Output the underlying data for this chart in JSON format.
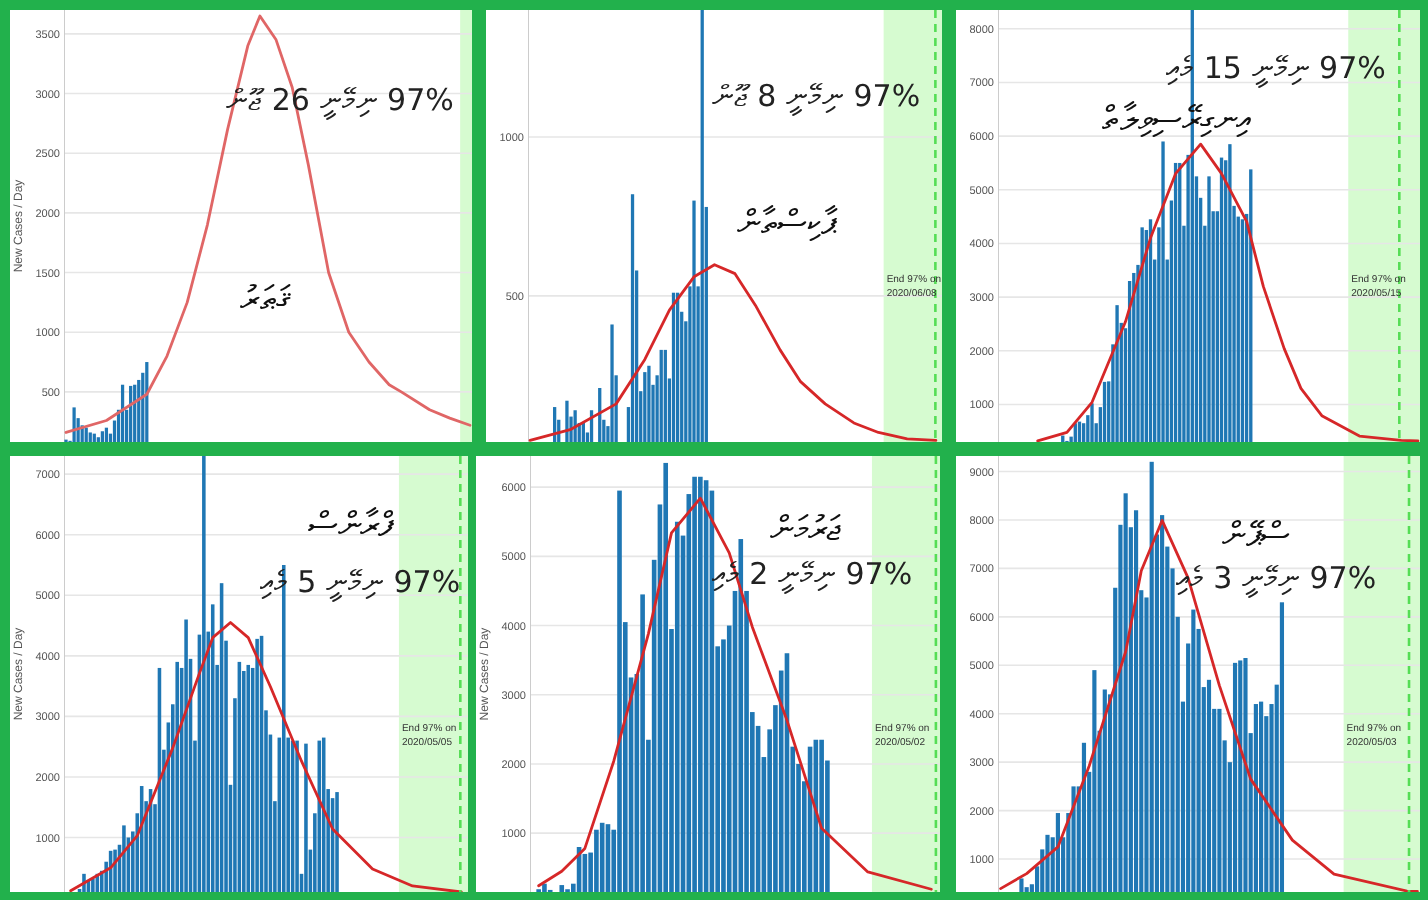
{
  "chart_data": [
    {
      "type": "bar",
      "title": "ޤަޠަރު",
      "subtitle": "97% ނިމޭނީ 26 ޖޫން",
      "ylabel": "New Cases / Day",
      "tick_labels": "y",
      "grid": "y",
      "ylim": [
        80,
        3700
      ],
      "yticks": [
        500,
        1000,
        1500,
        2000,
        2500,
        3000,
        3500
      ],
      "categories": [
        null,
        null,
        null,
        null,
        null,
        null,
        null,
        null,
        null,
        null,
        null,
        null,
        null,
        null,
        null,
        null,
        null,
        null,
        null,
        null,
        null,
        null,
        null,
        null,
        null,
        null,
        null,
        null,
        null,
        null,
        null,
        null,
        null,
        null,
        null,
        null,
        null,
        null,
        null,
        null,
        null,
        null,
        null,
        null,
        null,
        null,
        null,
        null,
        null,
        null,
        null,
        null,
        null,
        null,
        null,
        null,
        null,
        null,
        null,
        null,
        null,
        null,
        null,
        null,
        null,
        null,
        null,
        null,
        null,
        null,
        null,
        null,
        null,
        null,
        null,
        null,
        null,
        null,
        null,
        null,
        null,
        null,
        null,
        null,
        null,
        null,
        null,
        null,
        null,
        null,
        null,
        null,
        null,
        null,
        null,
        null,
        null,
        null,
        null,
        null,
        null
      ],
      "series": [
        {
          "color": "#1f77b4",
          "values": [
            100,
            90,
            370,
            280,
            220,
            200,
            160,
            150,
            120,
            170,
            200,
            150,
            260,
            350,
            560,
            350,
            550,
            560,
            600,
            660,
            750,
            null,
            null,
            null,
            null,
            null,
            null,
            null,
            null,
            null,
            null,
            null,
            null,
            null,
            null,
            null,
            null,
            null,
            null,
            null,
            null,
            null,
            null,
            null,
            null,
            null,
            null,
            null,
            null,
            null,
            null,
            null,
            null,
            null,
            null,
            null,
            null,
            null,
            null,
            null,
            null,
            null,
            null,
            null,
            null,
            null,
            null,
            null,
            null,
            null,
            null,
            null,
            null,
            null,
            null,
            null,
            null,
            null,
            null,
            null,
            null,
            null,
            null,
            null,
            null,
            null,
            null,
            null,
            null,
            null,
            null,
            null,
            null,
            null,
            null,
            null,
            null,
            null,
            null,
            null,
            null
          ]
        },
        {
          "type": "line",
          "color": "#e06666",
          "values": [
            160,
            null,
            null,
            null,
            null,
            null,
            null,
            null,
            null,
            null,
            260,
            null,
            null,
            null,
            null,
            null,
            null,
            null,
            null,
            null,
            480,
            null,
            null,
            null,
            null,
            800,
            null,
            null,
            null,
            null,
            1250,
            null,
            null,
            null,
            null,
            1900,
            null,
            null,
            null,
            null,
            2700,
            null,
            null,
            null,
            null,
            3400,
            null,
            null,
            3650,
            null,
            null,
            null,
            3450,
            null,
            null,
            null,
            3050,
            null,
            null,
            null,
            2400,
            null,
            null,
            null,
            null,
            1500,
            null,
            null,
            null,
            null,
            1000,
            null,
            null,
            null,
            null,
            750,
            null,
            null,
            null,
            null,
            560,
            null,
            null,
            500,
            null,
            null,
            null,
            null,
            null,
            null,
            350,
            null,
            null,
            null,
            null,
            280,
            null,
            null,
            null,
            null,
            220
          ]
        }
      ]
    },
    {
      "type": "bar",
      "title": "ޕާކިސްތާން",
      "subtitle": "97% ނިމޭނީ 8 ޖޫން",
      "tick_labels": "y",
      "grid": "y",
      "ylim": [
        40,
        1400
      ],
      "yticks": [
        500,
        1000
      ],
      "categories": [
        null,
        null,
        null,
        null,
        null,
        null,
        null,
        null,
        null,
        null,
        null,
        null,
        null,
        null,
        null,
        null,
        null,
        null,
        null,
        null,
        null,
        null,
        null,
        null,
        null,
        null,
        null,
        null,
        null,
        null,
        null,
        null,
        null,
        null,
        null,
        null,
        null,
        null,
        null,
        null,
        null,
        null,
        null,
        null,
        null,
        null,
        null,
        null,
        null,
        null,
        null,
        null,
        null,
        null,
        null,
        null,
        null,
        null,
        null,
        null,
        null,
        null,
        null,
        null,
        null,
        null,
        null,
        null,
        null,
        null,
        null,
        null,
        null,
        null,
        null,
        null,
        null,
        null,
        null,
        null,
        null,
        null,
        null,
        null,
        null,
        null,
        null,
        null,
        null,
        null,
        null,
        null,
        null,
        null,
        null,
        null,
        null,
        null,
        null,
        null,
        null
      ],
      "series": [
        {
          "color": "#1f77b4",
          "values": [
            null,
            null,
            null,
            null,
            null,
            null,
            150,
            110,
            null,
            170,
            120,
            140,
            100,
            100,
            70,
            140,
            null,
            210,
            110,
            90,
            410,
            250,
            null,
            null,
            150,
            820,
            580,
            200,
            260,
            280,
            220,
            250,
            330,
            330,
            240,
            510,
            510,
            450,
            420,
            530,
            800,
            530,
            1400,
            780,
            null,
            null,
            null,
            null,
            null,
            null,
            null,
            null,
            null,
            null,
            null,
            null,
            null,
            null,
            null,
            null,
            null,
            null,
            null,
            null,
            null,
            null,
            null,
            null,
            null,
            null,
            null,
            null,
            null,
            null,
            null,
            null,
            null,
            null,
            null,
            null,
            null,
            null,
            null,
            null,
            null,
            null,
            null,
            null,
            null,
            null,
            null,
            null,
            null,
            null,
            null,
            null,
            null,
            null,
            null,
            null,
            null
          ]
        },
        {
          "type": "line",
          "color": "#d62728",
          "values": [
            45,
            null,
            null,
            null,
            null,
            null,
            null,
            null,
            null,
            null,
            80,
            null,
            null,
            null,
            null,
            null,
            null,
            null,
            null,
            null,
            null,
            160,
            null,
            null,
            null,
            null,
            null,
            null,
            300,
            null,
            null,
            null,
            null,
            null,
            455,
            null,
            null,
            null,
            null,
            null,
            560,
            null,
            null,
            null,
            null,
            598,
            null,
            null,
            null,
            null,
            570,
            null,
            null,
            null,
            null,
            470,
            null,
            null,
            null,
            null,
            null,
            330,
            null,
            null,
            null,
            null,
            230,
            null,
            null,
            null,
            null,
            null,
            160,
            null,
            null,
            null,
            null,
            null,
            null,
            100,
            null,
            null,
            null,
            null,
            null,
            70,
            null,
            null,
            null,
            null,
            null,
            null,
            50,
            null,
            null,
            null,
            null,
            null,
            null,
            45,
            null
          ]
        }
      ],
      "annotations": [
        "End 97% on 2020/06/08"
      ]
    },
    {
      "type": "bar",
      "title": "އިނގިރޭސިވިލާތް",
      "subtitle": "97% ނިމޭނީ 15 މެއި",
      "tick_labels": "y",
      "grid": "y",
      "ylim": [
        300,
        8350
      ],
      "yticks": [
        1000,
        2000,
        3000,
        4000,
        5000,
        6000,
        7000,
        8000
      ],
      "categories": [
        null,
        null,
        null,
        null,
        null,
        null,
        null,
        null,
        null,
        null,
        null,
        null,
        null,
        null,
        null,
        null,
        null,
        null,
        null,
        null,
        null,
        null,
        null,
        null,
        null,
        null,
        null,
        null,
        null,
        null,
        null,
        null,
        null,
        null,
        null,
        null,
        null,
        null,
        null,
        null,
        null,
        null,
        null,
        null,
        null,
        null,
        null,
        null,
        null,
        null,
        null,
        null,
        null,
        null,
        null,
        null,
        null,
        null,
        null,
        null,
        null,
        null,
        null,
        null,
        null,
        null,
        null,
        null,
        null,
        null,
        null,
        null,
        null,
        null,
        null,
        null,
        null,
        null,
        null,
        null,
        null,
        null,
        null,
        null,
        null,
        null,
        null,
        null,
        null,
        null,
        null,
        null,
        null,
        null,
        null,
        null,
        null,
        null,
        null,
        null,
        null
      ],
      "series": [
        {
          "color": "#1f77b4",
          "values": [
            null,
            null,
            null,
            null,
            null,
            null,
            null,
            null,
            null,
            null,
            null,
            null,
            null,
            null,
            null,
            420,
            320,
            400,
            650,
            680,
            650,
            800,
            1020,
            650,
            950,
            1420,
            1430,
            2120,
            2850,
            2520,
            2420,
            3300,
            3450,
            3600,
            4300,
            4250,
            4450,
            3700,
            4300,
            5900,
            3700,
            4800,
            5500,
            5500,
            4330,
            5650,
            8350,
            5250,
            4850,
            4330,
            5250,
            4600,
            4600,
            5600,
            5550,
            5850,
            4700,
            4500,
            4450,
            4550,
            5380,
            null,
            null,
            null,
            null,
            null,
            null,
            null,
            null,
            null,
            null,
            null,
            null,
            null,
            null,
            null,
            null,
            null,
            null,
            null,
            null,
            null,
            null,
            null,
            null,
            null,
            null,
            null,
            null,
            null,
            null,
            null,
            null,
            null,
            null,
            null,
            null,
            null,
            null,
            null,
            null
          ]
        },
        {
          "type": "line",
          "color": "#d62728",
          "values": [
            null,
            null,
            null,
            null,
            null,
            null,
            null,
            null,
            null,
            320,
            null,
            null,
            null,
            null,
            null,
            null,
            480,
            null,
            null,
            null,
            null,
            null,
            1040,
            null,
            null,
            null,
            null,
            null,
            null,
            null,
            2540,
            null,
            null,
            null,
            null,
            null,
            4100,
            null,
            null,
            null,
            null,
            null,
            5300,
            null,
            null,
            null,
            null,
            null,
            5850,
            null,
            null,
            null,
            null,
            5300,
            null,
            null,
            null,
            null,
            null,
            4410,
            null,
            null,
            null,
            3200,
            null,
            null,
            null,
            null,
            2040,
            null,
            null,
            null,
            1300,
            null,
            null,
            null,
            null,
            790,
            null,
            null,
            null,
            null,
            null,
            null,
            null,
            null,
            410,
            null,
            null,
            null,
            null,
            null,
            null,
            null,
            null,
            null,
            330,
            null,
            null,
            null,
            320
          ]
        }
      ],
      "annotations": [
        "End 97% on 2020/05/15"
      ]
    },
    {
      "type": "bar",
      "title": "ފްރާންސް",
      "subtitle": "97% ނިމޭނީ 5 މެއި",
      "ylabel": "New Cases / Day",
      "tick_labels": "y",
      "grid": "y",
      "ylim": [
        100,
        7300
      ],
      "yticks": [
        1000,
        2000,
        3000,
        4000,
        5000,
        6000,
        7000
      ],
      "categories": [
        null,
        null,
        null,
        null,
        null,
        null,
        null,
        null,
        null,
        null,
        null,
        null,
        null,
        null,
        null,
        null,
        null,
        null,
        null,
        null,
        null,
        null,
        null,
        null,
        null,
        null,
        null,
        null,
        null,
        null,
        null,
        null,
        null,
        null,
        null,
        null,
        null,
        null,
        null,
        null,
        null,
        null,
        null,
        null,
        null,
        null,
        null,
        null,
        null,
        null,
        null,
        null,
        null,
        null,
        null,
        null,
        null,
        null,
        null,
        null,
        null,
        null,
        null,
        null,
        null,
        null,
        null,
        null,
        null,
        null,
        null,
        null,
        null,
        null,
        null,
        null,
        null,
        null,
        null,
        null,
        null,
        null,
        null,
        null,
        null,
        null,
        null,
        null,
        null,
        null,
        null
      ],
      "series": [
        {
          "color": "#1f77b4",
          "values": [
            null,
            null,
            null,
            150,
            400,
            300,
            320,
            400,
            450,
            600,
            780,
            800,
            880,
            1200,
            1000,
            1100,
            1400,
            1850,
            1600,
            1800,
            1550,
            3800,
            2450,
            2900,
            3200,
            3900,
            3800,
            4600,
            3950,
            2600,
            4350,
            7300,
            4400,
            4850,
            3850,
            5200,
            4250,
            1870,
            3300,
            3900,
            3750,
            3850,
            3800,
            4280,
            4330,
            3100,
            2700,
            1600,
            2650,
            5500,
            2650,
            2600,
            2600,
            400,
            2550,
            800,
            1400,
            2600,
            2650,
            1800,
            1650,
            1750,
            null,
            null,
            null,
            null,
            null,
            null,
            null,
            null,
            null,
            null,
            null,
            null,
            null,
            null,
            null,
            null,
            null,
            null,
            null,
            null,
            null,
            null,
            null,
            null,
            null,
            null,
            null,
            null,
            null
          ]
        },
        {
          "type": "line",
          "color": "#d62728",
          "values": [
            null,
            120,
            null,
            null,
            null,
            null,
            null,
            null,
            null,
            null,
            500,
            null,
            null,
            null,
            null,
            null,
            1030,
            null,
            null,
            null,
            null,
            null,
            null,
            null,
            2480,
            null,
            null,
            null,
            null,
            null,
            3710,
            null,
            null,
            4300,
            null,
            null,
            null,
            4550,
            null,
            null,
            null,
            4300,
            null,
            null,
            null,
            null,
            3490,
            null,
            null,
            null,
            null,
            null,
            null,
            2260,
            null,
            null,
            null,
            null,
            null,
            null,
            1140,
            null,
            null,
            null,
            null,
            null,
            null,
            null,
            null,
            480,
            null,
            null,
            null,
            null,
            null,
            null,
            null,
            null,
            200,
            null,
            null,
            null,
            null,
            null,
            null,
            null,
            null,
            null,
            null,
            100,
            null
          ]
        }
      ],
      "annotations": [
        "End 97% on 2020/05/05"
      ]
    },
    {
      "type": "bar",
      "title": "ޖަރުމަން",
      "subtitle": "97% ނިމޭނީ 2 މެއި",
      "ylabel": "New Cases / Day",
      "tick_labels": "y",
      "grid": "y",
      "ylim": [
        150,
        6450
      ],
      "yticks": [
        1000,
        2000,
        3000,
        4000,
        5000,
        6000
      ],
      "categories": [
        null,
        null,
        null,
        null,
        null,
        null,
        null,
        null,
        null,
        null,
        null,
        null,
        null,
        null,
        null,
        null,
        null,
        null,
        null,
        null,
        null,
        null,
        null,
        null,
        null,
        null,
        null,
        null,
        null,
        null,
        null,
        null,
        null,
        null,
        null,
        null,
        null,
        null,
        null,
        null,
        null,
        null,
        null,
        null,
        null,
        null,
        null,
        null,
        null,
        null,
        null,
        null,
        null,
        null,
        null,
        null,
        null,
        null,
        null,
        null,
        null,
        null,
        null,
        null,
        null,
        null,
        null,
        null,
        null,
        null,
        null
      ],
      "series": [
        {
          "color": "#1f77b4",
          "values": [
            null,
            190,
            270,
            180,
            null,
            250,
            190,
            270,
            800,
            700,
            720,
            1050,
            1150,
            1130,
            1050,
            5950,
            4050,
            3250,
            3300,
            4450,
            2350,
            4950,
            5750,
            6350,
            3950,
            5500,
            5300,
            5900,
            6150,
            6150,
            6100,
            5950,
            3700,
            3800,
            4000,
            4500,
            5250,
            4500,
            2750,
            2550,
            2100,
            2500,
            2850,
            3350,
            3600,
            2250,
            2000,
            1750,
            2250,
            2350,
            2350,
            2050,
            null,
            null,
            null,
            null,
            null,
            null,
            null,
            null,
            null,
            null,
            null,
            null,
            null,
            null,
            null,
            null,
            null,
            null,
            null
          ]
        },
        {
          "type": "line",
          "color": "#d62728",
          "values": [
            null,
            240,
            null,
            null,
            null,
            450,
            null,
            null,
            null,
            780,
            null,
            null,
            null,
            null,
            2040,
            null,
            null,
            null,
            null,
            null,
            3880,
            null,
            null,
            null,
            5340,
            null,
            null,
            null,
            null,
            5840,
            null,
            null,
            null,
            null,
            5050,
            null,
            null,
            null,
            3980,
            null,
            null,
            null,
            null,
            null,
            2630,
            null,
            null,
            null,
            null,
            null,
            1070,
            null,
            null,
            null,
            null,
            null,
            null,
            null,
            440,
            null,
            null,
            null,
            null,
            null,
            null,
            null,
            null,
            null,
            null,
            190,
            null
          ]
        }
      ],
      "annotations": [
        "End 97% on 2020/05/02"
      ]
    },
    {
      "type": "bar",
      "title": "ސްޕޭން",
      "subtitle": "97% ނިމޭނީ 3 މެއި",
      "tick_labels": "y",
      "grid": "y",
      "ylim": [
        320,
        9320
      ],
      "yticks": [
        1000,
        2000,
        3000,
        4000,
        5000,
        6000,
        7000,
        8000,
        9000
      ],
      "categories": [
        null,
        null,
        null,
        null,
        null,
        null,
        null,
        null,
        null,
        null,
        null,
        null,
        null,
        null,
        null,
        null,
        null,
        null,
        null,
        null,
        null,
        null,
        null,
        null,
        null,
        null,
        null,
        null,
        null,
        null,
        null,
        null,
        null,
        null,
        null,
        null,
        null,
        null,
        null,
        null,
        null,
        null,
        null,
        null,
        null,
        null,
        null,
        null,
        null,
        null,
        null,
        null,
        null,
        null,
        null,
        null,
        null,
        null,
        null,
        null,
        null,
        null,
        null,
        null,
        null,
        null,
        null,
        null,
        null,
        null,
        null,
        null,
        null,
        null,
        null,
        null,
        null,
        null,
        null,
        null,
        null
      ],
      "series": [
        {
          "color": "#1f77b4",
          "values": [
            null,
            null,
            null,
            null,
            600,
            420,
            480,
            850,
            1200,
            1500,
            1450,
            1950,
            1450,
            1950,
            2500,
            2500,
            3400,
            2800,
            4900,
            3650,
            4500,
            4400,
            6600,
            7900,
            8550,
            7850,
            8200,
            6550,
            6400,
            9200,
            7700,
            8100,
            7450,
            7000,
            6000,
            4250,
            5450,
            6150,
            5750,
            4550,
            4700,
            4100,
            4100,
            3450,
            3000,
            5050,
            5100,
            5150,
            3600,
            4200,
            4250,
            3950,
            4200,
            4600,
            6300,
            null,
            null,
            null,
            null,
            null,
            null,
            null,
            null,
            null,
            null,
            null,
            null,
            null,
            null,
            null,
            null,
            null,
            null,
            null,
            null,
            null,
            null,
            null,
            null,
            null,
            null
          ]
        },
        {
          "type": "line",
          "color": "#d62728",
          "values": [
            390,
            null,
            null,
            null,
            null,
            700,
            null,
            null,
            null,
            null,
            null,
            1250,
            null,
            null,
            null,
            null,
            null,
            2920,
            null,
            null,
            null,
            null,
            null,
            null,
            5280,
            null,
            null,
            6950,
            null,
            null,
            null,
            7990,
            null,
            null,
            null,
            null,
            6800,
            null,
            null,
            null,
            null,
            null,
            4580,
            null,
            null,
            null,
            null,
            null,
            2650,
            null,
            null,
            null,
            null,
            null,
            null,
            null,
            1390,
            null,
            null,
            null,
            null,
            null,
            null,
            null,
            690,
            null,
            null,
            null,
            null,
            null,
            null,
            null,
            null,
            null,
            null,
            null,
            null,
            null,
            340,
            null,
            330
          ]
        }
      ],
      "annotations": [
        "End 97% on 2020/05/03"
      ]
    }
  ]
}
